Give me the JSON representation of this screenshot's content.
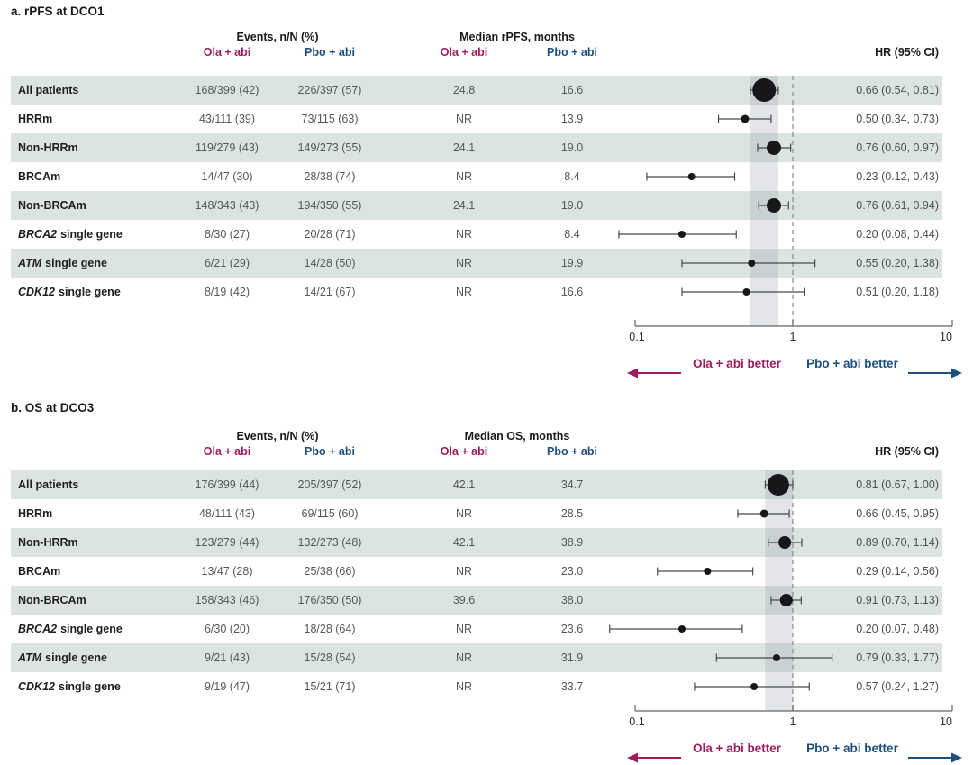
{
  "colors": {
    "ola_accent": "#9e1b5f",
    "pbo_accent": "#1d4f7e",
    "row_shade": "#dce4e1",
    "band_fill": "#9aa2ac",
    "dot": "#17171a",
    "ci_line": "#46494c",
    "axis_line": "#5f6468",
    "dashed_ref": "#8a9296"
  },
  "panels": [
    {
      "title": "a. rPFS at DCO1",
      "headers": {
        "events": "Events, n/N (%)",
        "median": "Median rPFS, months",
        "ola": "Ola + abi",
        "pbo": "Pbo + abi",
        "hr": "HR (95% CI)"
      },
      "axis_ticks": [
        "0.1",
        "1",
        "10"
      ],
      "arrows": {
        "left": "Ola + abi better",
        "right": "Pbo + abi better"
      }
    },
    {
      "title": "b. OS at DCO3",
      "headers": {
        "events": "Events, n/N (%)",
        "median": "Median OS, months",
        "ola": "Ola + abi",
        "pbo": "Pbo + abi",
        "hr": "HR (95% CI)"
      },
      "axis_ticks": [
        "0.1",
        "1",
        "10"
      ],
      "arrows": {
        "left": "Ola + abi better",
        "right": "Pbo + abi better"
      }
    }
  ],
  "chart_data": [
    {
      "type": "scatter",
      "subtype": "forest-plot",
      "title": "a. rPFS at DCO1",
      "x_scale": "log",
      "xlim": [
        0.1,
        10
      ],
      "x_ticks": [
        0.1,
        1,
        10
      ],
      "reference_line": 1,
      "shaded_band": [
        0.54,
        0.81
      ],
      "categories": [
        "All patients",
        "HRRm",
        "Non-HRRm",
        "BRCAm",
        "Non-BRCAm",
        "BRCA2 single gene",
        "ATM single gene",
        "CDK12 single gene"
      ],
      "italic_gene_rows": [
        5,
        6,
        7
      ],
      "events_ola": [
        "168/399 (42)",
        "43/111 (39)",
        "119/279 (43)",
        "14/47 (30)",
        "148/343 (43)",
        "8/30 (27)",
        "6/21 (29)",
        "8/19 (42)"
      ],
      "events_pbo": [
        "226/397 (57)",
        "73/115 (63)",
        "149/273 (55)",
        "28/38 (74)",
        "194/350 (55)",
        "20/28 (71)",
        "14/28 (50)",
        "14/21 (67)"
      ],
      "median_ola": [
        "24.8",
        "NR",
        "24.1",
        "NR",
        "24.1",
        "NR",
        "NR",
        "NR"
      ],
      "median_pbo": [
        "16.6",
        "13.9",
        "19.0",
        "8.4",
        "19.0",
        "8.4",
        "19.9",
        "16.6"
      ],
      "hr": [
        0.66,
        0.5,
        0.76,
        0.23,
        0.76,
        0.2,
        0.55,
        0.51
      ],
      "ci_lower": [
        0.54,
        0.34,
        0.6,
        0.12,
        0.61,
        0.08,
        0.2,
        0.2
      ],
      "ci_upper": [
        0.81,
        0.73,
        0.97,
        0.43,
        0.94,
        0.44,
        1.38,
        1.18
      ],
      "hr_labels": [
        "0.66 (0.54, 0.81)",
        "0.50 (0.34, 0.73)",
        "0.76 (0.60, 0.97)",
        "0.23 (0.12, 0.43)",
        "0.76 (0.61, 0.94)",
        "0.20 (0.08, 0.44)",
        "0.55 (0.20, 1.38)",
        "0.51 (0.20, 1.18)"
      ],
      "marker_sizes": [
        26,
        9,
        16,
        8,
        16,
        8,
        8,
        8
      ],
      "direction_labels": {
        "left": "Ola + abi better",
        "right": "Pbo + abi better"
      }
    },
    {
      "type": "scatter",
      "subtype": "forest-plot",
      "title": "b. OS at DCO3",
      "x_scale": "log",
      "xlim": [
        0.1,
        10
      ],
      "x_ticks": [
        0.1,
        1,
        10
      ],
      "reference_line": 1,
      "shaded_band": [
        0.67,
        1.0
      ],
      "categories": [
        "All patients",
        "HRRm",
        "Non-HRRm",
        "BRCAm",
        "Non-BRCAm",
        "BRCA2 single gene",
        "ATM single gene",
        "CDK12 single gene"
      ],
      "italic_gene_rows": [
        5,
        6,
        7
      ],
      "events_ola": [
        "176/399 (44)",
        "48/111 (43)",
        "123/279 (44)",
        "13/47 (28)",
        "158/343 (46)",
        "6/30 (20)",
        "9/21 (43)",
        "9/19 (47)"
      ],
      "events_pbo": [
        "205/397 (52)",
        "69/115 (60)",
        "132/273 (48)",
        "25/38 (66)",
        "176/350 (50)",
        "18/28 (64)",
        "15/28 (54)",
        "15/21 (71)"
      ],
      "median_ola": [
        "42.1",
        "NR",
        "42.1",
        "NR",
        "39.6",
        "NR",
        "NR",
        "NR"
      ],
      "median_pbo": [
        "34.7",
        "28.5",
        "38.9",
        "23.0",
        "38.0",
        "23.6",
        "31.9",
        "33.7"
      ],
      "hr": [
        0.81,
        0.66,
        0.89,
        0.29,
        0.91,
        0.2,
        0.79,
        0.57
      ],
      "ci_lower": [
        0.67,
        0.45,
        0.7,
        0.14,
        0.73,
        0.07,
        0.33,
        0.24
      ],
      "ci_upper": [
        1.0,
        0.95,
        1.14,
        0.56,
        1.13,
        0.48,
        1.77,
        1.27
      ],
      "hr_labels": [
        "0.81 (0.67, 1.00)",
        "0.66 (0.45, 0.95)",
        "0.89 (0.70, 1.14)",
        "0.29 (0.14, 0.56)",
        "0.91 (0.73, 1.13)",
        "0.20 (0.07, 0.48)",
        "0.79 (0.33, 1.77)",
        "0.57 (0.24, 1.27)"
      ],
      "marker_sizes": [
        24,
        9,
        14,
        8,
        14,
        8,
        8,
        8
      ],
      "direction_labels": {
        "left": "Ola + abi better",
        "right": "Pbo + abi better"
      }
    }
  ]
}
